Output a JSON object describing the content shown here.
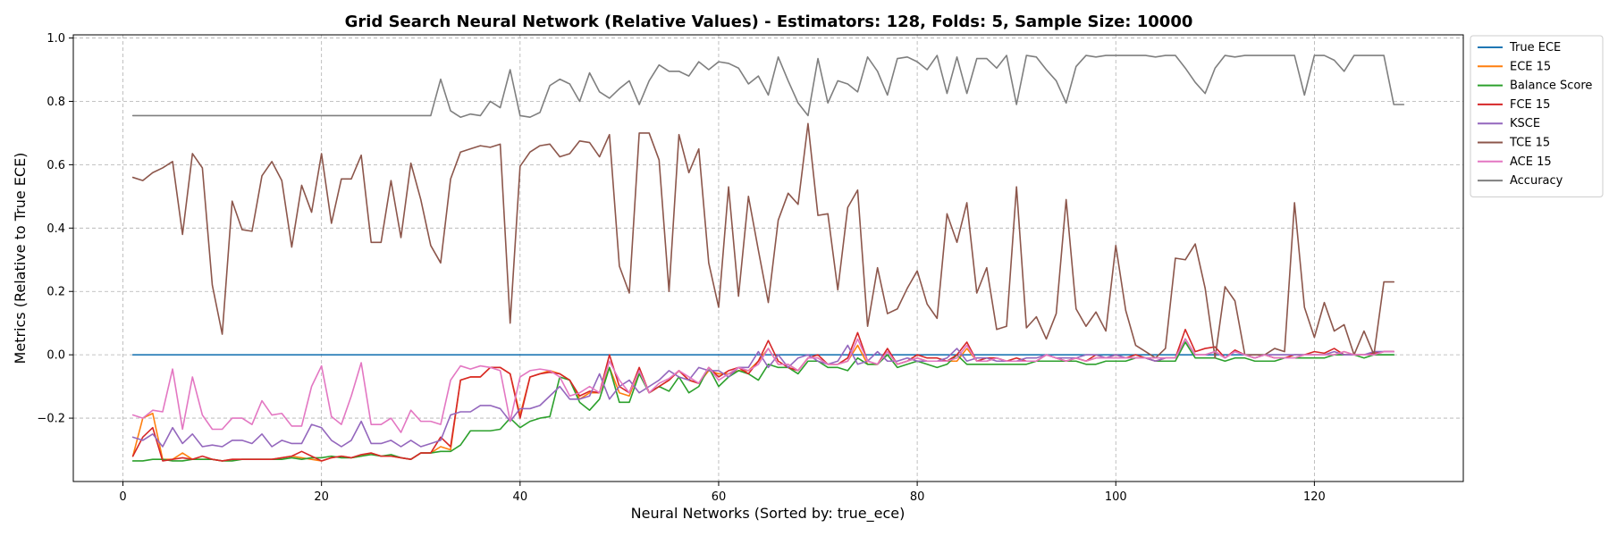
{
  "chart_data": {
    "type": "line",
    "title": "Grid Search Neural Network (Relative Values) - Estimators: 128, Folds: 5, Sample Size: 10000",
    "xlabel": "Neural Networks (Sorted by: true_ece)",
    "ylabel": "Metrics (Relative to True ECE)",
    "xlim": [
      -5,
      135
    ],
    "ylim": [
      -0.4,
      1.01
    ],
    "x_ticks": [
      0,
      20,
      40,
      60,
      80,
      100,
      120
    ],
    "y_ticks": [
      -0.2,
      0.0,
      0.2,
      0.4,
      0.6,
      0.8,
      1.0
    ],
    "grid": true,
    "legend_position": "outside-top-right",
    "x_start": 1,
    "series": [
      {
        "name": "True ECE",
        "color": "#1f77b4",
        "values": [
          0.0,
          0.0,
          0.0,
          0.0,
          0.0,
          0.0,
          0.0,
          0.0,
          0.0,
          0.0,
          0.0,
          0.0,
          0.0,
          0.0,
          0.0,
          0.0,
          0.0,
          0.0,
          0.0,
          0.0,
          0.0,
          0.0,
          0.0,
          0.0,
          0.0,
          0.0,
          0.0,
          0.0,
          0.0,
          0.0,
          0.0,
          0.0,
          0.0,
          0.0,
          0.0,
          0.0,
          0.0,
          0.0,
          0.0,
          0.0,
          0.0,
          0.0,
          0.0,
          0.0,
          0.0,
          0.0,
          0.0,
          0.0,
          0.0,
          0.0,
          0.0,
          0.0,
          0.0,
          0.0,
          0.0,
          0.0,
          0.0,
          0.0,
          0.0,
          0.0,
          0.0,
          0.0,
          0.0,
          0.0,
          0.0,
          0.0,
          0.0,
          0.0,
          0.0,
          0.0,
          0.0,
          0.0,
          0.0,
          0.0,
          0.0,
          0.0,
          0.0,
          0.0,
          0.0,
          0.0,
          0.0,
          0.0,
          0.0,
          0.0,
          0.0,
          0.0,
          0.0,
          0.0,
          0.0,
          0.0,
          0.0,
          0.0,
          0.0,
          0.0,
          0.0,
          0.0,
          0.0,
          0.0,
          0.0,
          0.0,
          0.0,
          0.0,
          0.0,
          0.0,
          0.0,
          0.0,
          0.0,
          0.0,
          0.0,
          0.0,
          0.0,
          0.0,
          0.0,
          0.0,
          0.0,
          0.0,
          0.0,
          0.0,
          0.0,
          0.0,
          0.0,
          0.0,
          0.0,
          0.0,
          0.0,
          0.0,
          0.0,
          0.0
        ]
      },
      {
        "name": "ECE 15",
        "color": "#ff7f0e",
        "values": [
          -0.32,
          -0.2,
          -0.185,
          -0.33,
          -0.33,
          -0.31,
          -0.33,
          -0.33,
          -0.33,
          -0.335,
          -0.33,
          -0.33,
          -0.33,
          -0.33,
          -0.33,
          -0.325,
          -0.32,
          -0.325,
          -0.33,
          -0.335,
          -0.325,
          -0.32,
          -0.325,
          -0.32,
          -0.31,
          -0.32,
          -0.32,
          -0.325,
          -0.33,
          -0.31,
          -0.31,
          -0.29,
          -0.3,
          -0.08,
          -0.07,
          -0.07,
          -0.04,
          -0.04,
          -0.06,
          -0.19,
          -0.07,
          -0.06,
          -0.05,
          -0.06,
          -0.08,
          -0.14,
          -0.12,
          -0.12,
          -0.04,
          -0.12,
          -0.13,
          -0.05,
          -0.12,
          -0.1,
          -0.08,
          -0.05,
          -0.08,
          -0.09,
          -0.05,
          -0.06,
          -0.06,
          -0.05,
          -0.05,
          -0.02,
          0.02,
          -0.03,
          -0.03,
          -0.05,
          -0.01,
          -0.01,
          -0.03,
          -0.03,
          -0.02,
          0.03,
          -0.03,
          -0.03,
          0.01,
          -0.03,
          -0.02,
          -0.01,
          -0.02,
          -0.02,
          -0.02,
          -0.02,
          0.02,
          -0.02,
          -0.02,
          -0.01,
          -0.02,
          -0.02,
          -0.02,
          -0.02,
          0.0,
          -0.01,
          -0.02,
          -0.01,
          -0.02,
          -0.01,
          -0.01,
          -0.01,
          -0.01,
          -0.01,
          -0.01,
          -0.01,
          -0.01,
          -0.01,
          0.05,
          0.0,
          0.0,
          0.01,
          -0.01,
          0.01,
          0.0,
          -0.01,
          0.0,
          -0.01,
          -0.01,
          -0.01,
          0.0,
          0.0,
          0.0,
          0.0,
          0.01,
          0.0,
          0.0,
          0.0,
          0.01,
          0.01
        ]
      },
      {
        "name": "Balance Score",
        "color": "#2ca02c",
        "values": [
          -0.335,
          -0.335,
          -0.33,
          -0.33,
          -0.335,
          -0.335,
          -0.33,
          -0.33,
          -0.33,
          -0.335,
          -0.335,
          -0.33,
          -0.33,
          -0.33,
          -0.33,
          -0.33,
          -0.325,
          -0.33,
          -0.325,
          -0.325,
          -0.32,
          -0.325,
          -0.325,
          -0.32,
          -0.315,
          -0.32,
          -0.315,
          -0.325,
          -0.33,
          -0.31,
          -0.31,
          -0.305,
          -0.305,
          -0.285,
          -0.24,
          -0.24,
          -0.24,
          -0.235,
          -0.2,
          -0.23,
          -0.21,
          -0.2,
          -0.195,
          -0.07,
          -0.08,
          -0.15,
          -0.175,
          -0.14,
          -0.04,
          -0.15,
          -0.15,
          -0.06,
          -0.12,
          -0.1,
          -0.115,
          -0.07,
          -0.12,
          -0.1,
          -0.04,
          -0.1,
          -0.07,
          -0.05,
          -0.06,
          -0.08,
          -0.03,
          -0.04,
          -0.04,
          -0.06,
          -0.02,
          -0.02,
          -0.04,
          -0.04,
          -0.05,
          -0.01,
          -0.03,
          -0.03,
          0.0,
          -0.04,
          -0.03,
          -0.02,
          -0.03,
          -0.04,
          -0.03,
          0.0,
          -0.03,
          -0.03,
          -0.03,
          -0.03,
          -0.03,
          -0.03,
          -0.03,
          -0.02,
          -0.02,
          -0.02,
          -0.02,
          -0.02,
          -0.03,
          -0.03,
          -0.02,
          -0.02,
          -0.02,
          -0.01,
          -0.01,
          -0.02,
          -0.02,
          -0.02,
          0.04,
          -0.01,
          -0.01,
          -0.01,
          -0.02,
          -0.01,
          -0.01,
          -0.02,
          -0.02,
          -0.02,
          -0.01,
          -0.01,
          -0.01,
          -0.01,
          -0.01,
          0.0,
          0.0,
          0.0,
          -0.01,
          0.0,
          0.0,
          0.0
        ]
      },
      {
        "name": "FCE 15",
        "color": "#d62728",
        "values": [
          -0.32,
          -0.26,
          -0.23,
          -0.335,
          -0.33,
          -0.325,
          -0.33,
          -0.32,
          -0.33,
          -0.335,
          -0.33,
          -0.33,
          -0.33,
          -0.33,
          -0.33,
          -0.325,
          -0.32,
          -0.305,
          -0.32,
          -0.335,
          -0.325,
          -0.32,
          -0.325,
          -0.315,
          -0.31,
          -0.32,
          -0.32,
          -0.325,
          -0.33,
          -0.31,
          -0.31,
          -0.26,
          -0.29,
          -0.08,
          -0.07,
          -0.07,
          -0.04,
          -0.04,
          -0.06,
          -0.2,
          -0.07,
          -0.06,
          -0.055,
          -0.06,
          -0.08,
          -0.13,
          -0.115,
          -0.12,
          0.0,
          -0.1,
          -0.12,
          -0.04,
          -0.12,
          -0.1,
          -0.08,
          -0.05,
          -0.08,
          -0.09,
          -0.04,
          -0.07,
          -0.05,
          -0.04,
          -0.06,
          -0.02,
          0.045,
          -0.02,
          -0.04,
          -0.05,
          -0.01,
          0.0,
          -0.03,
          -0.03,
          -0.01,
          0.07,
          -0.02,
          -0.03,
          0.02,
          -0.03,
          -0.02,
          0.0,
          -0.01,
          -0.01,
          -0.02,
          0.0,
          0.04,
          -0.02,
          -0.01,
          -0.01,
          -0.02,
          -0.01,
          -0.02,
          -0.02,
          0.0,
          -0.01,
          -0.02,
          -0.01,
          -0.02,
          0.0,
          -0.01,
          0.0,
          -0.01,
          0.0,
          -0.01,
          -0.02,
          -0.01,
          -0.01,
          0.08,
          0.01,
          0.02,
          0.025,
          -0.01,
          0.015,
          0.0,
          -0.01,
          0.0,
          -0.01,
          -0.01,
          0.0,
          0.0,
          0.01,
          0.005,
          0.02,
          0.0,
          0.0,
          0.0,
          0.005,
          0.01,
          0.01
        ]
      },
      {
        "name": "KSCE",
        "color": "#9467bd",
        "values": [
          -0.26,
          -0.27,
          -0.25,
          -0.29,
          -0.23,
          -0.28,
          -0.25,
          -0.29,
          -0.285,
          -0.29,
          -0.27,
          -0.27,
          -0.28,
          -0.25,
          -0.29,
          -0.27,
          -0.28,
          -0.28,
          -0.22,
          -0.23,
          -0.27,
          -0.29,
          -0.27,
          -0.21,
          -0.28,
          -0.28,
          -0.27,
          -0.29,
          -0.27,
          -0.29,
          -0.28,
          -0.27,
          -0.19,
          -0.18,
          -0.18,
          -0.16,
          -0.16,
          -0.17,
          -0.21,
          -0.17,
          -0.17,
          -0.16,
          -0.13,
          -0.1,
          -0.14,
          -0.14,
          -0.13,
          -0.06,
          -0.14,
          -0.1,
          -0.08,
          -0.12,
          -0.1,
          -0.08,
          -0.05,
          -0.07,
          -0.08,
          -0.04,
          -0.05,
          -0.05,
          -0.07,
          -0.04,
          -0.04,
          0.01,
          -0.04,
          0.0,
          -0.04,
          -0.01,
          0.0,
          -0.02,
          -0.03,
          -0.02,
          0.03,
          -0.03,
          -0.02,
          0.01,
          -0.02,
          -0.02,
          -0.01,
          -0.02,
          -0.02,
          -0.02,
          -0.01,
          0.02,
          -0.02,
          -0.01,
          -0.01,
          -0.02,
          -0.02,
          -0.02,
          -0.01,
          -0.01,
          0.0,
          -0.01,
          -0.01,
          -0.01,
          0.0,
          0.0,
          -0.01,
          0.0,
          -0.01,
          -0.01,
          -0.01,
          -0.02,
          -0.01,
          -0.01,
          0.05,
          0.0,
          0.0,
          0.01,
          -0.01,
          0.01,
          0.0,
          -0.01,
          0.0,
          0.0,
          0.0,
          0.0,
          0.0,
          0.0,
          0.0,
          0.01,
          0.0,
          0.0,
          0.0,
          0.01,
          0.01,
          0.01
        ]
      },
      {
        "name": "TCE 15",
        "color": "#8c564b",
        "values": [
          0.56,
          0.55,
          0.575,
          0.59,
          0.61,
          0.38,
          0.635,
          0.59,
          0.22,
          0.065,
          0.485,
          0.395,
          0.39,
          0.565,
          0.61,
          0.55,
          0.34,
          0.535,
          0.45,
          0.635,
          0.415,
          0.555,
          0.555,
          0.63,
          0.355,
          0.355,
          0.55,
          0.37,
          0.605,
          0.49,
          0.345,
          0.29,
          0.555,
          0.64,
          0.65,
          0.66,
          0.655,
          0.665,
          0.1,
          0.595,
          0.64,
          0.66,
          0.665,
          0.625,
          0.635,
          0.675,
          0.67,
          0.625,
          0.695,
          0.28,
          0.195,
          0.7,
          0.7,
          0.615,
          0.2,
          0.695,
          0.575,
          0.65,
          0.29,
          0.15,
          0.53,
          0.185,
          0.5,
          0.33,
          0.165,
          0.425,
          0.51,
          0.475,
          0.73,
          0.44,
          0.445,
          0.205,
          0.465,
          0.52,
          0.09,
          0.275,
          0.13,
          0.145,
          0.21,
          0.265,
          0.16,
          0.115,
          0.445,
          0.355,
          0.48,
          0.195,
          0.275,
          0.08,
          0.09,
          0.53,
          0.085,
          0.12,
          0.05,
          0.13,
          0.49,
          0.145,
          0.09,
          0.135,
          0.075,
          0.345,
          0.14,
          0.03,
          0.01,
          -0.01,
          0.02,
          0.305,
          0.3,
          0.35,
          0.21,
          -0.01,
          0.215,
          0.17,
          0.0,
          0.0,
          0.0,
          0.02,
          0.01,
          0.48,
          0.15,
          0.055,
          0.165,
          0.075,
          0.095,
          0.0,
          0.075,
          0.0,
          0.23,
          0.23
        ]
      },
      {
        "name": "ACE 15",
        "color": "#e377c2",
        "values": [
          -0.19,
          -0.2,
          -0.175,
          -0.18,
          -0.045,
          -0.235,
          -0.07,
          -0.19,
          -0.235,
          -0.235,
          -0.2,
          -0.2,
          -0.22,
          -0.145,
          -0.19,
          -0.185,
          -0.225,
          -0.225,
          -0.1,
          -0.035,
          -0.195,
          -0.22,
          -0.13,
          -0.025,
          -0.22,
          -0.22,
          -0.2,
          -0.245,
          -0.175,
          -0.21,
          -0.21,
          -0.22,
          -0.08,
          -0.035,
          -0.045,
          -0.035,
          -0.04,
          -0.05,
          -0.21,
          -0.07,
          -0.05,
          -0.045,
          -0.05,
          -0.07,
          -0.13,
          -0.12,
          -0.1,
          -0.12,
          -0.02,
          -0.08,
          -0.12,
          -0.05,
          -0.12,
          -0.09,
          -0.075,
          -0.05,
          -0.07,
          -0.09,
          -0.04,
          -0.08,
          -0.06,
          -0.04,
          -0.05,
          -0.03,
          0.02,
          -0.03,
          -0.03,
          -0.05,
          -0.01,
          -0.01,
          -0.03,
          -0.03,
          -0.02,
          0.05,
          -0.02,
          -0.03,
          0.01,
          -0.03,
          -0.02,
          -0.01,
          -0.02,
          -0.02,
          -0.02,
          -0.01,
          0.03,
          -0.02,
          -0.02,
          -0.01,
          -0.02,
          -0.02,
          -0.02,
          -0.02,
          0.0,
          -0.01,
          -0.02,
          -0.01,
          -0.02,
          -0.01,
          -0.01,
          -0.01,
          -0.01,
          -0.01,
          -0.01,
          -0.01,
          -0.01,
          -0.01,
          0.05,
          0.0,
          0.0,
          0.01,
          -0.01,
          0.01,
          0.0,
          -0.01,
          0.0,
          -0.01,
          -0.01,
          -0.01,
          0.0,
          0.0,
          0.0,
          0.0,
          0.01,
          0.0,
          0.0,
          0.0,
          0.01,
          0.01
        ]
      },
      {
        "name": "Accuracy",
        "color": "#7f7f7f",
        "values": [
          0.755,
          0.755,
          0.755,
          0.755,
          0.755,
          0.755,
          0.755,
          0.755,
          0.755,
          0.755,
          0.755,
          0.755,
          0.755,
          0.755,
          0.755,
          0.755,
          0.755,
          0.755,
          0.755,
          0.755,
          0.755,
          0.755,
          0.755,
          0.755,
          0.755,
          0.755,
          0.755,
          0.755,
          0.755,
          0.755,
          0.755,
          0.87,
          0.77,
          0.75,
          0.76,
          0.755,
          0.8,
          0.78,
          0.9,
          0.755,
          0.75,
          0.765,
          0.85,
          0.87,
          0.855,
          0.8,
          0.89,
          0.83,
          0.81,
          0.84,
          0.865,
          0.79,
          0.865,
          0.915,
          0.895,
          0.895,
          0.88,
          0.925,
          0.9,
          0.925,
          0.92,
          0.905,
          0.855,
          0.88,
          0.82,
          0.94,
          0.865,
          0.795,
          0.755,
          0.935,
          0.795,
          0.865,
          0.855,
          0.83,
          0.94,
          0.895,
          0.82,
          0.935,
          0.94,
          0.925,
          0.9,
          0.945,
          0.825,
          0.94,
          0.825,
          0.935,
          0.935,
          0.905,
          0.945,
          0.79,
          0.945,
          0.94,
          0.9,
          0.865,
          0.795,
          0.91,
          0.945,
          0.94,
          0.945,
          0.945,
          0.945,
          0.945,
          0.945,
          0.94,
          0.945,
          0.945,
          0.905,
          0.86,
          0.825,
          0.905,
          0.945,
          0.94,
          0.945,
          0.945,
          0.945,
          0.945,
          0.945,
          0.945,
          0.82,
          0.945,
          0.945,
          0.93,
          0.895,
          0.945,
          0.945,
          0.945,
          0.945,
          0.79,
          0.79
        ]
      }
    ]
  }
}
